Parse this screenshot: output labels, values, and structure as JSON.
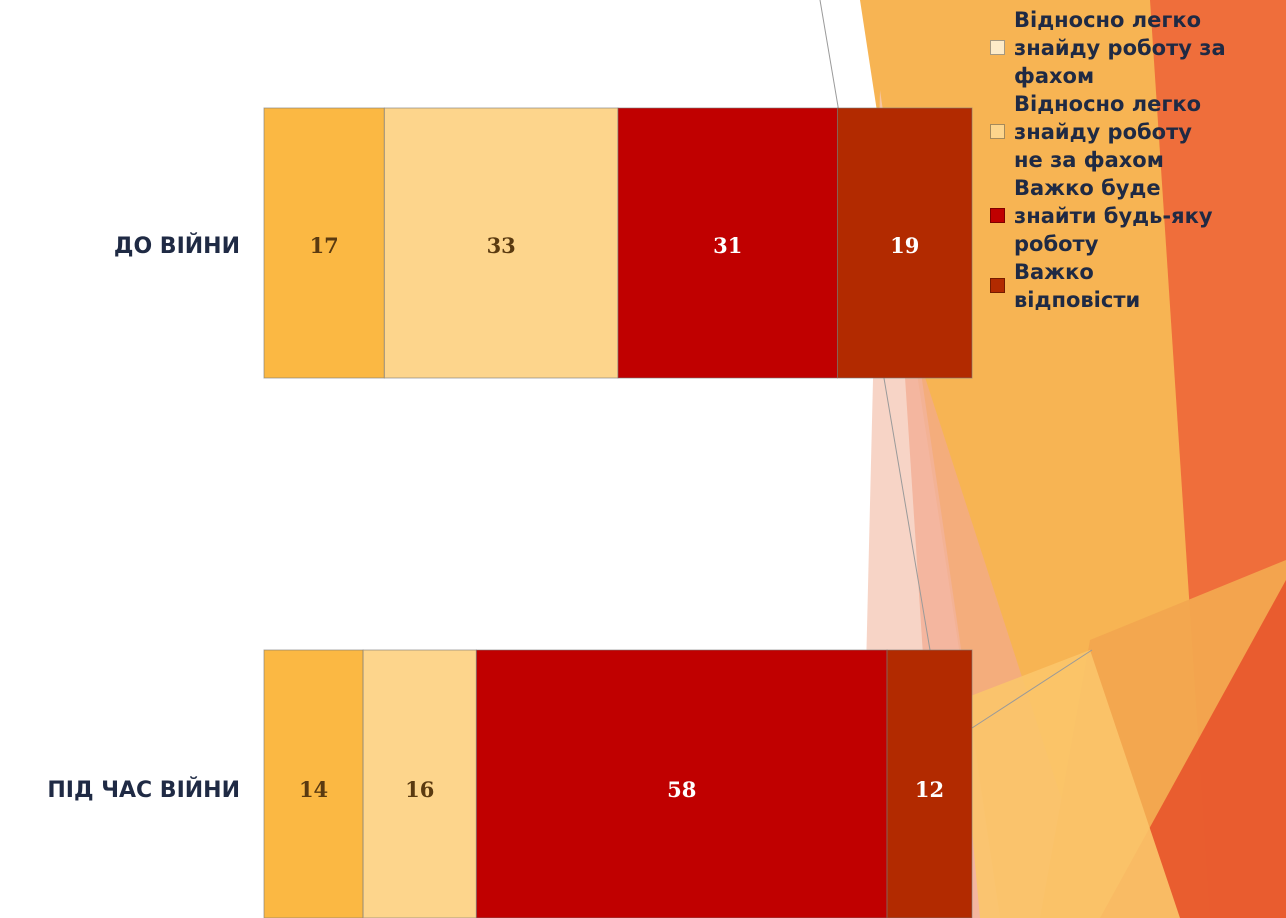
{
  "chart_data": {
    "type": "bar",
    "orientation": "horizontal",
    "stacked": true,
    "categories": [
      "ДО ВІЙНИ",
      "ПІД ЧАС ВІЙНИ"
    ],
    "series": [
      {
        "name": "Відносно легко знайду роботу за фахом",
        "values": [
          17,
          14
        ],
        "color": "#FBB843",
        "label_color": "#5a3a10"
      },
      {
        "name": "Відносно легко знайду роботу не за фахом",
        "values": [
          33,
          16
        ],
        "color": "#FDD58C",
        "label_color": "#5a3a10"
      },
      {
        "name": "Важко буде знайти будь-яку роботу",
        "values": [
          31,
          58
        ],
        "color": "#C00000",
        "label_color": "#ffffff"
      },
      {
        "name": "Важко відповісти",
        "values": [
          19,
          12
        ],
        "color": "#B22A00",
        "label_color": "#ffffff"
      }
    ],
    "xlim": [
      0,
      100
    ],
    "legend_position": "right",
    "grid": false
  },
  "legend": {
    "items": [
      {
        "lines": [
          "Відносно легко",
          "знайду роботу за",
          "фахом"
        ],
        "color": "#FDEBC8"
      },
      {
        "lines": [
          "Відносно легко",
          "знайду роботу",
          "не за фахом"
        ],
        "color": "#FDD58C"
      },
      {
        "lines": [
          "Важко буде",
          "знайти будь-яку",
          "роботу"
        ],
        "color": "#C00000"
      },
      {
        "lines": [
          "Важко",
          "відповісти"
        ],
        "color": "#B22A00"
      }
    ]
  }
}
